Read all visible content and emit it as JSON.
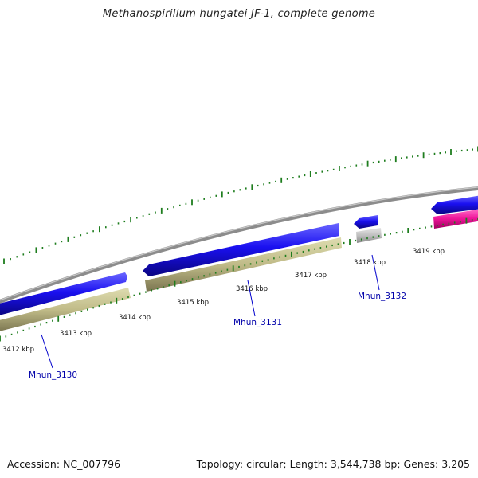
{
  "title": "Methanospirillum hungatei JF-1, complete genome",
  "footer": {
    "accession": "Accession: NC_007796",
    "stats": "Topology: circular; Length: 3,544,738 bp; Genes: 3,205"
  },
  "ruler_labels": [
    "3412 kbp",
    "3413 kbp",
    "3414 kbp",
    "3415 kbp",
    "3416 kbp",
    "3417 kbp",
    "3418 kbp",
    "3419 kbp"
  ],
  "genes": [
    {
      "name": "Mhun_3130",
      "color": "#1a10f0",
      "strand": "forward"
    },
    {
      "name": "Mhun_3131",
      "color": "#1a10f0",
      "strand": "reverse"
    },
    {
      "name": "Mhun_3132",
      "color": "#1a10f0",
      "strand": "reverse"
    },
    {
      "name": "",
      "color": "#1a10f0",
      "strand": "reverse"
    }
  ],
  "features": [
    {
      "type": "CDS",
      "color": "#c0bb88"
    },
    {
      "type": "CDS",
      "color": "#c0bb88"
    },
    {
      "type": "other",
      "color": "#bfbfbf"
    },
    {
      "type": "tRNA",
      "color": "#ee1499"
    }
  ],
  "colors": {
    "backbone": "#8c8c8c",
    "ruler": "#1e7d1e",
    "gene_label": "#0000aa",
    "leader": "#0000cc"
  }
}
